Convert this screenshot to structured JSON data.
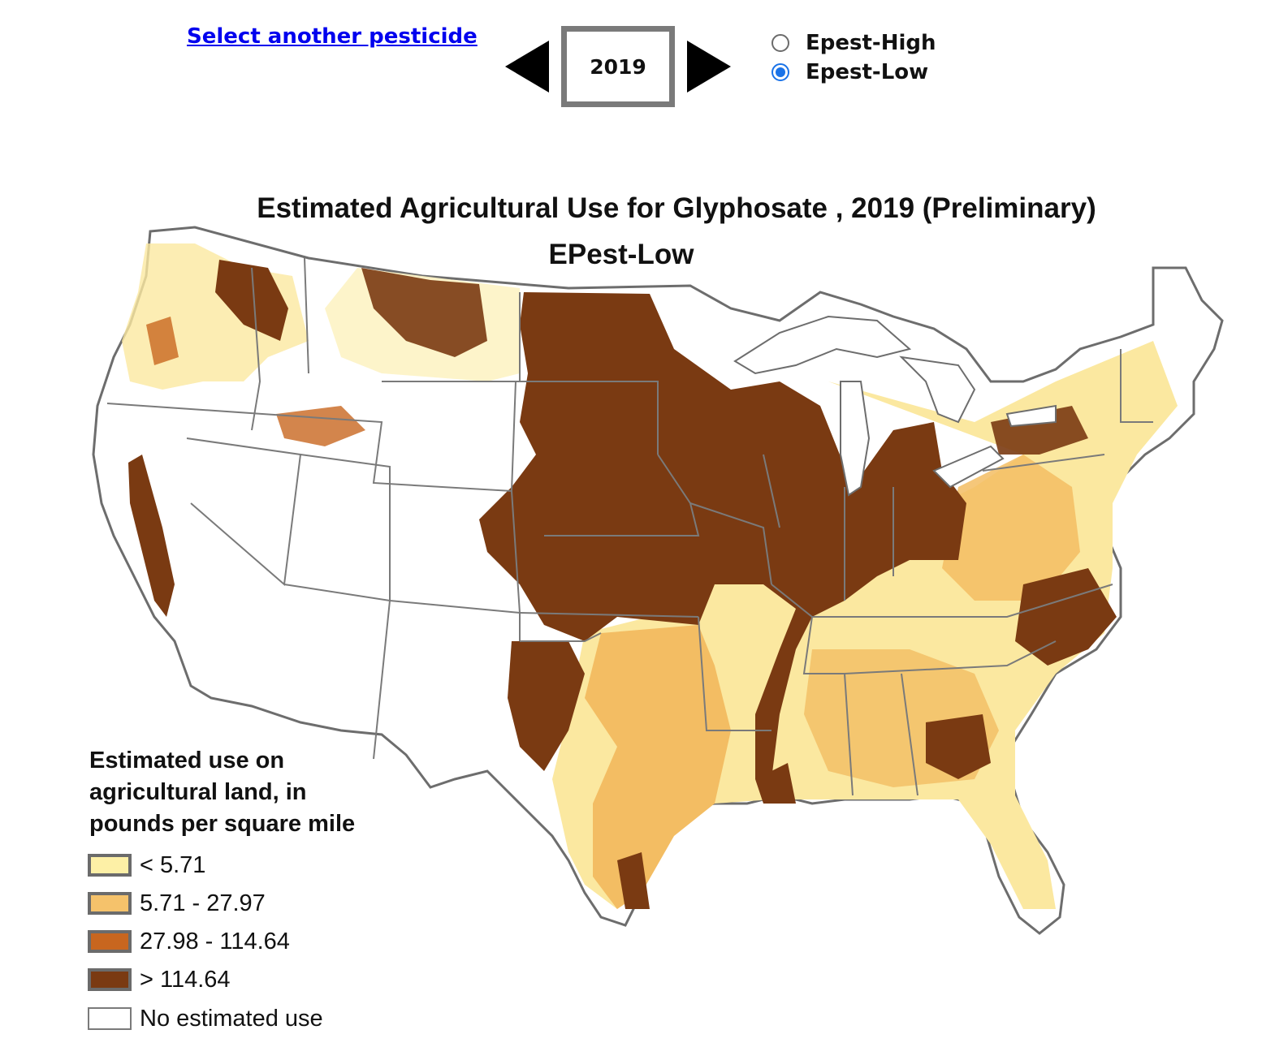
{
  "nav": {
    "select_link": "Select another pesticide",
    "year": "2019",
    "prev_arrow_icon": "triangle-left-icon",
    "next_arrow_icon": "triangle-right-icon"
  },
  "estimate_options": [
    {
      "label": "Epest-High",
      "checked": false
    },
    {
      "label": "Epest-Low",
      "checked": true
    }
  ],
  "map": {
    "title": "Estimated Agricultural Use for Glyphosate , 2019 (Preliminary)",
    "subtitle": "EPest-Low",
    "legend": {
      "title_lines": [
        "Estimated use on",
        "agricultural land, in",
        "pounds per square mile"
      ],
      "items": [
        {
          "label": "< 5.71",
          "color": "#fdf0a6"
        },
        {
          "label": "5.71 - 27.97",
          "color": "#f5c26b"
        },
        {
          "label": "27.98 - 114.64",
          "color": "#c8661f"
        },
        {
          "label": "> 114.64",
          "color": "#7a3a12"
        },
        {
          "label": "No estimated use",
          "color": "#ffffff"
        }
      ]
    }
  }
}
